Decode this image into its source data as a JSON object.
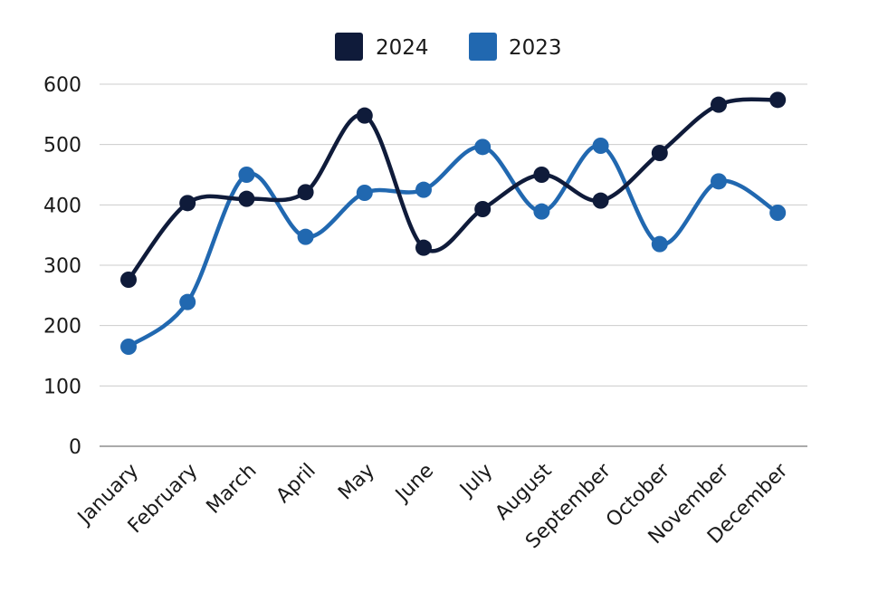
{
  "chart_data": {
    "type": "line",
    "title": "",
    "xlabel": "",
    "ylabel": "",
    "categories": [
      "January",
      "February",
      "March",
      "April",
      "May",
      "June",
      "July",
      "August",
      "September",
      "October",
      "November",
      "December"
    ],
    "series": [
      {
        "name": "2024",
        "color": "#0f1b3a",
        "values": [
          276,
          403,
          410,
          421,
          548,
          329,
          393,
          450,
          407,
          486,
          566,
          574
        ]
      },
      {
        "name": "2023",
        "color": "#2168b0",
        "values": [
          165,
          239,
          450,
          347,
          420,
          425,
          496,
          389,
          498,
          335,
          439,
          387
        ]
      }
    ],
    "ylim": [
      0,
      600
    ],
    "yticks": [
      "0",
      "100",
      "200",
      "300",
      "400",
      "500",
      "600"
    ],
    "grid": true,
    "legend": "top-center",
    "smooth": true
  }
}
